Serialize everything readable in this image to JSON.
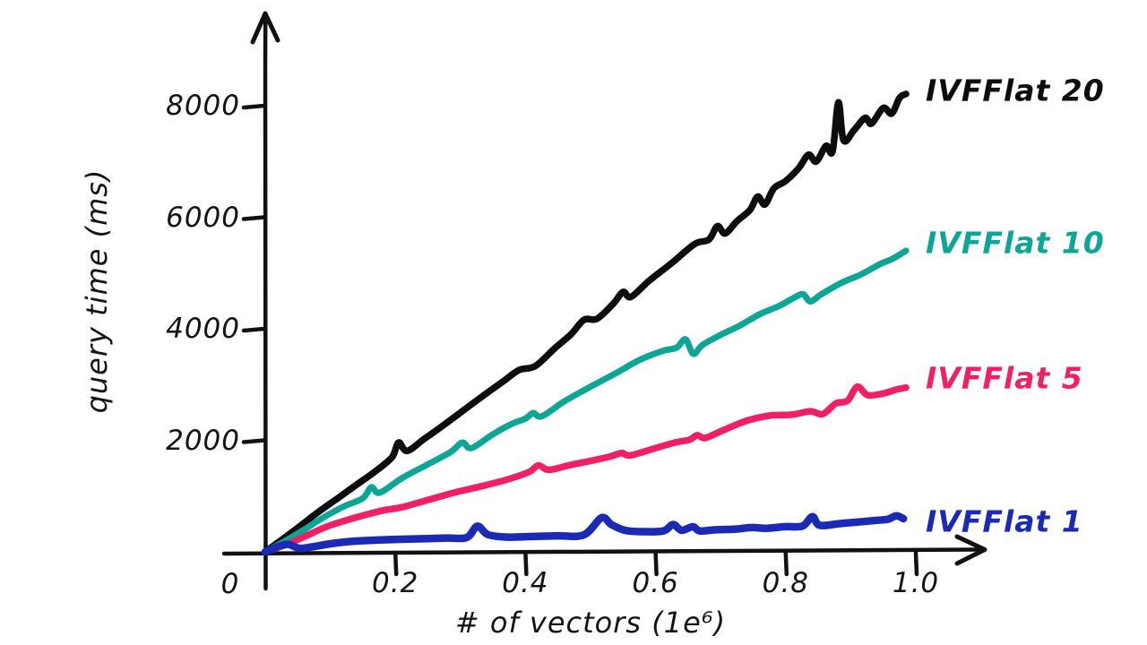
{
  "chart_data": {
    "type": "line",
    "title": "",
    "xlabel": "# of vectors (1e⁶)",
    "ylabel": "query time (ms)",
    "xlim": [
      0,
      1.05
    ],
    "ylim": [
      0,
      9000
    ],
    "grid": false,
    "legend_position": "right-of-line-ends",
    "origin_label": "0",
    "x_ticks": [
      {
        "value": 0.2,
        "label": "0.2"
      },
      {
        "value": 0.4,
        "label": "0.4"
      },
      {
        "value": 0.6,
        "label": "0.6"
      },
      {
        "value": 0.8,
        "label": "0.8"
      },
      {
        "value": 1.0,
        "label": "1.0"
      }
    ],
    "y_ticks": [
      {
        "value": 2000,
        "label": "2000"
      },
      {
        "value": 4000,
        "label": "4000"
      },
      {
        "value": 6000,
        "label": "6000"
      },
      {
        "value": 8000,
        "label": "8000"
      }
    ],
    "series": [
      {
        "name": "IVFFlat 20",
        "color": "#0d0d0d",
        "end_value_ms": 8200,
        "points": [
          [
            0,
            0
          ],
          [
            0.02,
            170
          ],
          [
            0.05,
            430
          ],
          [
            0.08,
            700
          ],
          [
            0.11,
            950
          ],
          [
            0.14,
            1200
          ],
          [
            0.17,
            1450
          ],
          [
            0.195,
            1700
          ],
          [
            0.205,
            1960
          ],
          [
            0.218,
            1810
          ],
          [
            0.245,
            2030
          ],
          [
            0.275,
            2280
          ],
          [
            0.305,
            2540
          ],
          [
            0.335,
            2800
          ],
          [
            0.365,
            3050
          ],
          [
            0.39,
            3260
          ],
          [
            0.415,
            3330
          ],
          [
            0.445,
            3650
          ],
          [
            0.47,
            3900
          ],
          [
            0.49,
            4160
          ],
          [
            0.51,
            4180
          ],
          [
            0.535,
            4450
          ],
          [
            0.55,
            4660
          ],
          [
            0.562,
            4570
          ],
          [
            0.59,
            4860
          ],
          [
            0.625,
            5180
          ],
          [
            0.66,
            5520
          ],
          [
            0.682,
            5600
          ],
          [
            0.695,
            5840
          ],
          [
            0.707,
            5710
          ],
          [
            0.725,
            5930
          ],
          [
            0.745,
            6130
          ],
          [
            0.757,
            6370
          ],
          [
            0.768,
            6230
          ],
          [
            0.782,
            6520
          ],
          [
            0.8,
            6650
          ],
          [
            0.82,
            6880
          ],
          [
            0.835,
            7120
          ],
          [
            0.847,
            7000
          ],
          [
            0.862,
            7280
          ],
          [
            0.872,
            7180
          ],
          [
            0.881,
            8060
          ],
          [
            0.889,
            7380
          ],
          [
            0.905,
            7560
          ],
          [
            0.922,
            7780
          ],
          [
            0.932,
            7680
          ],
          [
            0.95,
            7960
          ],
          [
            0.963,
            7860
          ],
          [
            0.975,
            8140
          ],
          [
            0.985,
            8210
          ]
        ]
      },
      {
        "name": "IVFFlat 10",
        "color": "#0ca696",
        "end_value_ms": 5400,
        "points": [
          [
            0,
            0
          ],
          [
            0.03,
            190
          ],
          [
            0.06,
            400
          ],
          [
            0.09,
            620
          ],
          [
            0.12,
            810
          ],
          [
            0.15,
            960
          ],
          [
            0.163,
            1160
          ],
          [
            0.176,
            1060
          ],
          [
            0.21,
            1320
          ],
          [
            0.25,
            1570
          ],
          [
            0.285,
            1790
          ],
          [
            0.303,
            1960
          ],
          [
            0.317,
            1860
          ],
          [
            0.35,
            2110
          ],
          [
            0.38,
            2300
          ],
          [
            0.4,
            2390
          ],
          [
            0.412,
            2490
          ],
          [
            0.425,
            2430
          ],
          [
            0.46,
            2700
          ],
          [
            0.5,
            2960
          ],
          [
            0.54,
            3210
          ],
          [
            0.575,
            3440
          ],
          [
            0.61,
            3600
          ],
          [
            0.632,
            3660
          ],
          [
            0.646,
            3810
          ],
          [
            0.658,
            3550
          ],
          [
            0.672,
            3710
          ],
          [
            0.7,
            3890
          ],
          [
            0.73,
            4060
          ],
          [
            0.76,
            4260
          ],
          [
            0.79,
            4410
          ],
          [
            0.815,
            4570
          ],
          [
            0.827,
            4620
          ],
          [
            0.838,
            4490
          ],
          [
            0.855,
            4620
          ],
          [
            0.885,
            4820
          ],
          [
            0.915,
            4970
          ],
          [
            0.945,
            5160
          ],
          [
            0.965,
            5260
          ],
          [
            0.985,
            5400
          ]
        ]
      },
      {
        "name": "IVFFlat 5",
        "color": "#f12065",
        "end_value_ms": 2950,
        "points": [
          [
            0,
            0
          ],
          [
            0.03,
            120
          ],
          [
            0.06,
            270
          ],
          [
            0.09,
            430
          ],
          [
            0.12,
            550
          ],
          [
            0.15,
            650
          ],
          [
            0.18,
            740
          ],
          [
            0.21,
            800
          ],
          [
            0.25,
            930
          ],
          [
            0.29,
            1060
          ],
          [
            0.33,
            1170
          ],
          [
            0.37,
            1290
          ],
          [
            0.405,
            1430
          ],
          [
            0.42,
            1550
          ],
          [
            0.436,
            1470
          ],
          [
            0.47,
            1560
          ],
          [
            0.5,
            1630
          ],
          [
            0.53,
            1710
          ],
          [
            0.548,
            1770
          ],
          [
            0.561,
            1730
          ],
          [
            0.6,
            1860
          ],
          [
            0.63,
            1960
          ],
          [
            0.652,
            2010
          ],
          [
            0.664,
            2090
          ],
          [
            0.676,
            2040
          ],
          [
            0.7,
            2160
          ],
          [
            0.73,
            2310
          ],
          [
            0.752,
            2390
          ],
          [
            0.78,
            2450
          ],
          [
            0.81,
            2460
          ],
          [
            0.838,
            2520
          ],
          [
            0.857,
            2470
          ],
          [
            0.877,
            2660
          ],
          [
            0.895,
            2710
          ],
          [
            0.91,
            2960
          ],
          [
            0.926,
            2810
          ],
          [
            0.95,
            2840
          ],
          [
            0.97,
            2910
          ],
          [
            0.985,
            2945
          ]
        ]
      },
      {
        "name": "IVFFlat 1",
        "color": "#1a2ab5",
        "end_value_ms": 600,
        "points": [
          [
            0,
            0
          ],
          [
            0.02,
            95
          ],
          [
            0.035,
            135
          ],
          [
            0.052,
            65
          ],
          [
            0.07,
            85
          ],
          [
            0.1,
            145
          ],
          [
            0.13,
            185
          ],
          [
            0.16,
            205
          ],
          [
            0.19,
            218
          ],
          [
            0.22,
            228
          ],
          [
            0.25,
            238
          ],
          [
            0.28,
            248
          ],
          [
            0.31,
            258
          ],
          [
            0.326,
            460
          ],
          [
            0.342,
            310
          ],
          [
            0.37,
            265
          ],
          [
            0.41,
            275
          ],
          [
            0.45,
            288
          ],
          [
            0.49,
            305
          ],
          [
            0.517,
            610
          ],
          [
            0.532,
            490
          ],
          [
            0.553,
            385
          ],
          [
            0.58,
            362
          ],
          [
            0.612,
            375
          ],
          [
            0.627,
            490
          ],
          [
            0.64,
            385
          ],
          [
            0.657,
            450
          ],
          [
            0.668,
            375
          ],
          [
            0.692,
            395
          ],
          [
            0.72,
            405
          ],
          [
            0.748,
            435
          ],
          [
            0.77,
            422
          ],
          [
            0.8,
            452
          ],
          [
            0.826,
            462
          ],
          [
            0.841,
            630
          ],
          [
            0.852,
            475
          ],
          [
            0.882,
            505
          ],
          [
            0.912,
            535
          ],
          [
            0.94,
            565
          ],
          [
            0.957,
            585
          ],
          [
            0.97,
            645
          ],
          [
            0.981,
            595
          ]
        ]
      }
    ]
  }
}
